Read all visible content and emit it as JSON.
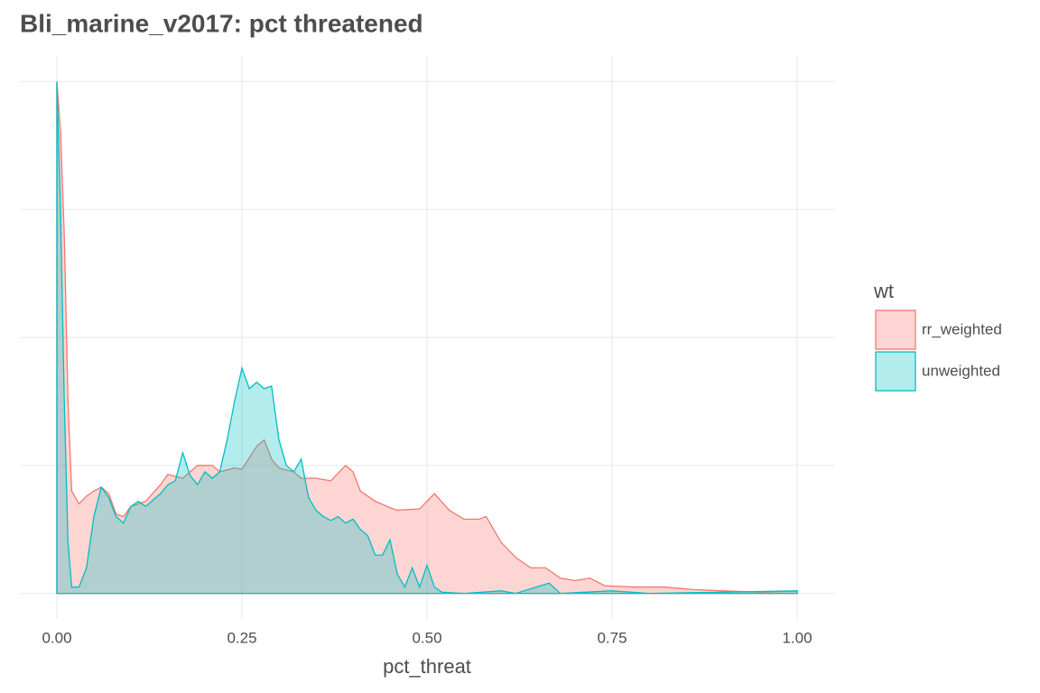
{
  "chart_data": {
    "type": "area",
    "title": "Bli_marine_v2017: pct threatened",
    "x_label": "pct_threat",
    "legend_title": "wt",
    "legend_position": "right",
    "grid": true,
    "xlim": [
      -0.05,
      1.05
    ],
    "ylim": [
      -0.2,
      4.2
    ],
    "xticks": [
      {
        "value": 0,
        "label": "0.00"
      },
      {
        "value": 0.25,
        "label": "0.25"
      },
      {
        "value": 0.5,
        "label": "0.50"
      },
      {
        "value": 0.75,
        "label": "0.75"
      },
      {
        "value": 1,
        "label": "1.00"
      }
    ],
    "yticks": [
      0,
      1,
      2,
      3,
      4
    ],
    "series": [
      {
        "name": "rr_weighted",
        "color": "#F8766D",
        "x": [
          0,
          0.005,
          0.01,
          0.015,
          0.02,
          0.03,
          0.04,
          0.05,
          0.06,
          0.07,
          0.08,
          0.09,
          0.1,
          0.12,
          0.14,
          0.15,
          0.17,
          0.18,
          0.19,
          0.21,
          0.22,
          0.24,
          0.25,
          0.27,
          0.28,
          0.29,
          0.3,
          0.32,
          0.33,
          0.35,
          0.37,
          0.39,
          0.4,
          0.41,
          0.43,
          0.45,
          0.46,
          0.49,
          0.51,
          0.53,
          0.55,
          0.57,
          0.58,
          0.6,
          0.62,
          0.64,
          0.66,
          0.68,
          0.7,
          0.72,
          0.74,
          0.78,
          0.82,
          0.86,
          0.9,
          0.95,
          1.0
        ],
        "values": [
          4.0,
          3.6,
          2.8,
          1.5,
          0.8,
          0.7,
          0.76,
          0.8,
          0.83,
          0.78,
          0.62,
          0.6,
          0.68,
          0.72,
          0.85,
          0.93,
          0.9,
          0.95,
          1.0,
          1.0,
          0.95,
          0.98,
          0.97,
          1.15,
          1.2,
          1.05,
          0.98,
          0.95,
          0.9,
          0.9,
          0.88,
          1.0,
          0.95,
          0.8,
          0.72,
          0.67,
          0.65,
          0.66,
          0.78,
          0.65,
          0.58,
          0.58,
          0.6,
          0.4,
          0.28,
          0.2,
          0.2,
          0.12,
          0.1,
          0.12,
          0.06,
          0.05,
          0.05,
          0.03,
          0.02,
          0.01,
          0.02
        ]
      },
      {
        "name": "unweighted",
        "color": "#00BFC4",
        "x": [
          0,
          0.005,
          0.01,
          0.015,
          0.02,
          0.03,
          0.04,
          0.05,
          0.06,
          0.07,
          0.08,
          0.09,
          0.1,
          0.11,
          0.12,
          0.14,
          0.15,
          0.16,
          0.17,
          0.18,
          0.19,
          0.2,
          0.21,
          0.22,
          0.23,
          0.24,
          0.25,
          0.26,
          0.27,
          0.28,
          0.29,
          0.3,
          0.31,
          0.32,
          0.33,
          0.34,
          0.35,
          0.36,
          0.37,
          0.38,
          0.39,
          0.4,
          0.41,
          0.42,
          0.43,
          0.44,
          0.45,
          0.46,
          0.47,
          0.48,
          0.49,
          0.5,
          0.51,
          0.52,
          0.55,
          0.6,
          0.62,
          0.665,
          0.68,
          0.75,
          0.8,
          1.0
        ],
        "values": [
          4.0,
          3.0,
          1.5,
          0.4,
          0.05,
          0.05,
          0.2,
          0.6,
          0.83,
          0.75,
          0.6,
          0.55,
          0.68,
          0.72,
          0.68,
          0.78,
          0.85,
          0.88,
          1.1,
          0.92,
          0.85,
          0.95,
          0.9,
          0.95,
          1.2,
          1.5,
          1.76,
          1.6,
          1.65,
          1.6,
          1.62,
          1.2,
          1.0,
          0.95,
          1.05,
          0.75,
          0.65,
          0.6,
          0.57,
          0.6,
          0.55,
          0.58,
          0.5,
          0.45,
          0.3,
          0.3,
          0.42,
          0.15,
          0.05,
          0.2,
          0.05,
          0.22,
          0.05,
          0.01,
          0.0,
          0.02,
          0.0,
          0.08,
          0.0,
          0.02,
          0.0,
          0.02
        ]
      }
    ]
  }
}
